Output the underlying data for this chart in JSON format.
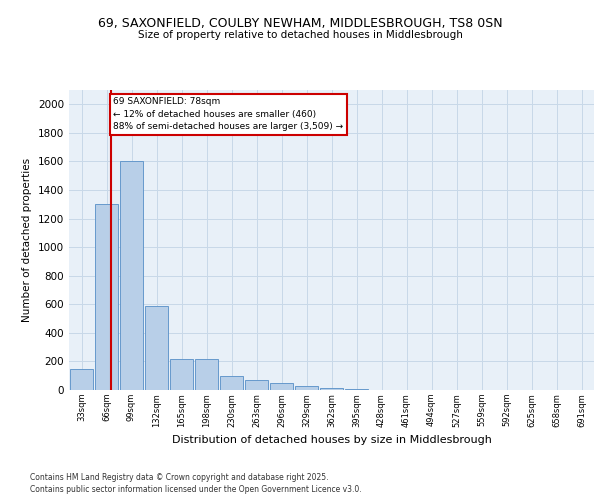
{
  "title1": "69, SAXONFIELD, COULBY NEWHAM, MIDDLESBROUGH, TS8 0SN",
  "title2": "Size of property relative to detached houses in Middlesbrough",
  "xlabel": "Distribution of detached houses by size in Middlesbrough",
  "ylabel": "Number of detached properties",
  "bar_labels": [
    "33sqm",
    "66sqm",
    "99sqm",
    "132sqm",
    "165sqm",
    "198sqm",
    "230sqm",
    "263sqm",
    "296sqm",
    "329sqm",
    "362sqm",
    "395sqm",
    "428sqm",
    "461sqm",
    "494sqm",
    "527sqm",
    "559sqm",
    "592sqm",
    "625sqm",
    "658sqm",
    "691sqm"
  ],
  "bar_values": [
    150,
    1300,
    1600,
    590,
    220,
    220,
    100,
    70,
    50,
    25,
    15,
    5,
    3,
    2,
    1,
    0,
    0,
    0,
    0,
    0,
    0
  ],
  "bar_color": "#b8cfe8",
  "bar_edge_color": "#6699cc",
  "grid_color": "#c8d8e8",
  "background_color": "#e8f0f8",
  "red_line_x": 1.17,
  "annotation_text": "69 SAXONFIELD: 78sqm\n← 12% of detached houses are smaller (460)\n88% of semi-detached houses are larger (3,509) →",
  "annotation_box_color": "#ffffff",
  "annotation_border_color": "#cc0000",
  "footer_line1": "Contains HM Land Registry data © Crown copyright and database right 2025.",
  "footer_line2": "Contains public sector information licensed under the Open Government Licence v3.0.",
  "ylim": [
    0,
    2100
  ],
  "yticks": [
    0,
    200,
    400,
    600,
    800,
    1000,
    1200,
    1400,
    1600,
    1800,
    2000
  ]
}
